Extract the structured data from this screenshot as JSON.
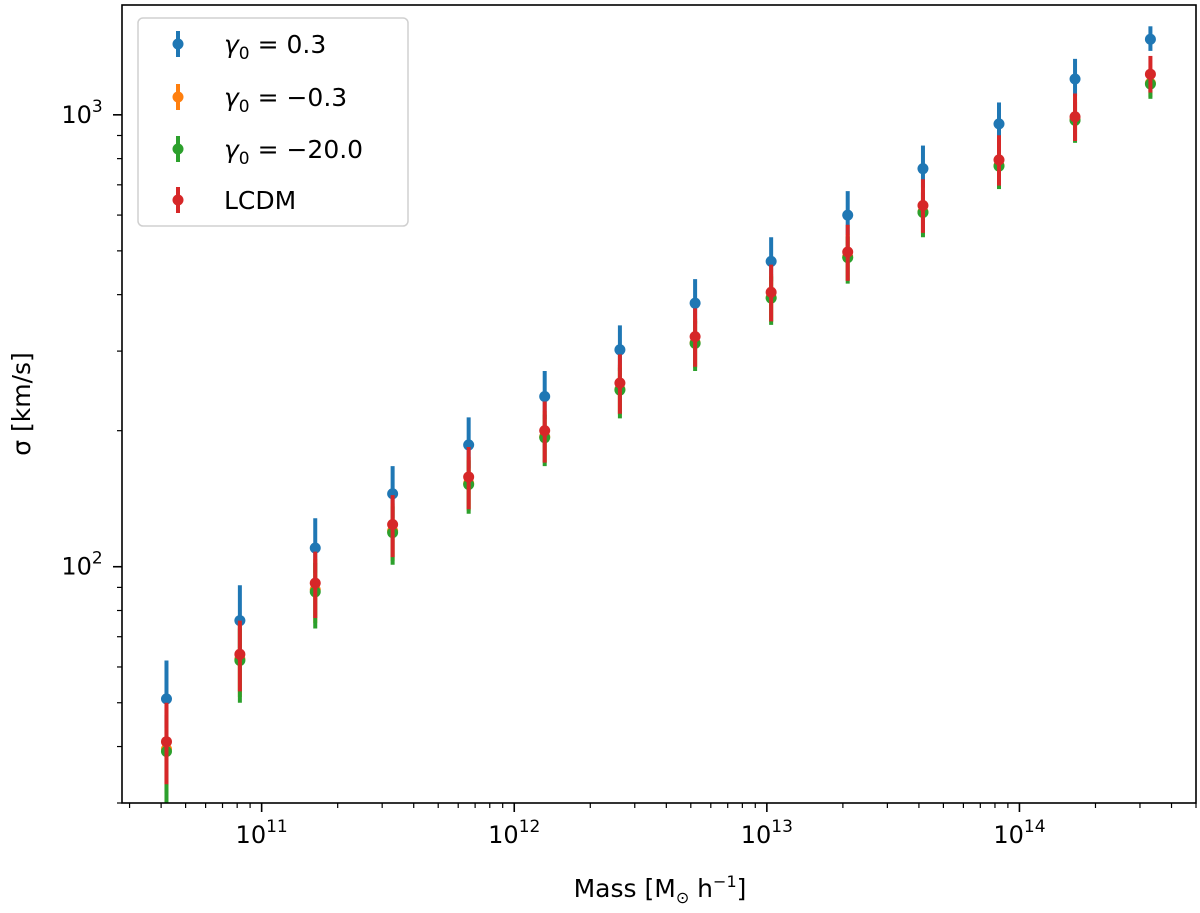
{
  "chart_data": {
    "type": "scatter",
    "title": "",
    "xlabel": "Mass [M",
    "xlabel_sub": "⊙",
    "xlabel_rest": " h",
    "xlabel_sup": "−1",
    "xlabel_close": "]",
    "ylabel": "σ [km/s]",
    "xscale": "log",
    "yscale": "log",
    "xlim": [
      28000000000.0,
      500000000000000.0
    ],
    "ylim": [
      30,
      1750
    ],
    "grid": false,
    "legend_location": "upper-left",
    "x_ticks": [
      {
        "base": "10",
        "exp": "11"
      },
      {
        "base": "10",
        "exp": "12"
      },
      {
        "base": "10",
        "exp": "13"
      },
      {
        "base": "10",
        "exp": "14"
      }
    ],
    "y_ticks": [
      {
        "base": "10",
        "exp": "2"
      },
      {
        "base": "10",
        "exp": "3"
      }
    ],
    "x": [
      42000000000.0,
      82000000000.0,
      163000000000.0,
      330000000000.0,
      660000000000.0,
      1320000000000.0,
      2620000000000.0,
      5200000000000.0,
      10400000000000.0,
      20900000000000.0,
      41500000000000.0,
      83000000000000.0,
      166000000000000.0,
      330000000000000.0
    ],
    "series": [
      {
        "name": "γ0 = 0.3",
        "label_base": "γ",
        "label_sub": "0",
        "label_rest": " = 0.3",
        "color": "#1f77b4",
        "values": [
          51,
          76,
          110,
          145,
          186,
          238,
          302,
          383,
          474,
          600,
          760,
          955,
          1200,
          1470
        ],
        "err_low": [
          7,
          10,
          13,
          17,
          21,
          26,
          31,
          38,
          46,
          57,
          70,
          85,
          100,
          85
        ],
        "err_high": [
          11,
          15,
          18,
          22,
          28,
          33,
          40,
          50,
          62,
          78,
          95,
          110,
          130,
          100
        ]
      },
      {
        "name": "γ0 = −0.3",
        "label_base": "γ",
        "label_sub": "0",
        "label_rest": " = −0.3",
        "color": "#ff7f0e",
        "values": [
          39.5,
          62.5,
          89,
          120,
          153,
          194,
          247,
          313,
          394,
          485,
          610,
          772,
          975,
          1175
        ],
        "err_low": [
          8,
          11,
          14,
          17,
          20,
          24,
          30,
          38,
          46,
          55,
          65,
          75,
          95,
          80
        ],
        "err_high": [
          9,
          12,
          15,
          18,
          22,
          27,
          33,
          41,
          50,
          60,
          72,
          85,
          105,
          90
        ]
      },
      {
        "name": "γ0 = −20.0",
        "label_base": "γ",
        "label_sub": "0",
        "label_rest": " = −20.0",
        "color": "#2ca02c",
        "values": [
          39,
          62,
          88,
          119,
          152,
          193,
          246,
          312,
          393,
          483,
          608,
          770,
          972,
          1170
        ],
        "err_low": [
          9,
          12,
          15,
          18,
          21,
          26,
          33,
          41,
          50,
          60,
          72,
          85,
          105,
          85
        ],
        "err_high": [
          8,
          11,
          14,
          17,
          20,
          24,
          30,
          38,
          46,
          55,
          65,
          75,
          95,
          80
        ]
      },
      {
        "name": "LCDM",
        "label_base": "LCDM",
        "label_sub": "",
        "label_rest": "",
        "color": "#d62728",
        "values": [
          41,
          64,
          92,
          124,
          158,
          200,
          255,
          323,
          405,
          497,
          630,
          795,
          990,
          1230
        ],
        "err_low": [
          8,
          11,
          15,
          19,
          24,
          30,
          37,
          46,
          56,
          68,
          82,
          98,
          115,
          110
        ],
        "err_high": [
          9,
          12,
          16,
          20,
          26,
          32,
          40,
          50,
          61,
          74,
          90,
          106,
          125,
          120
        ]
      }
    ]
  }
}
